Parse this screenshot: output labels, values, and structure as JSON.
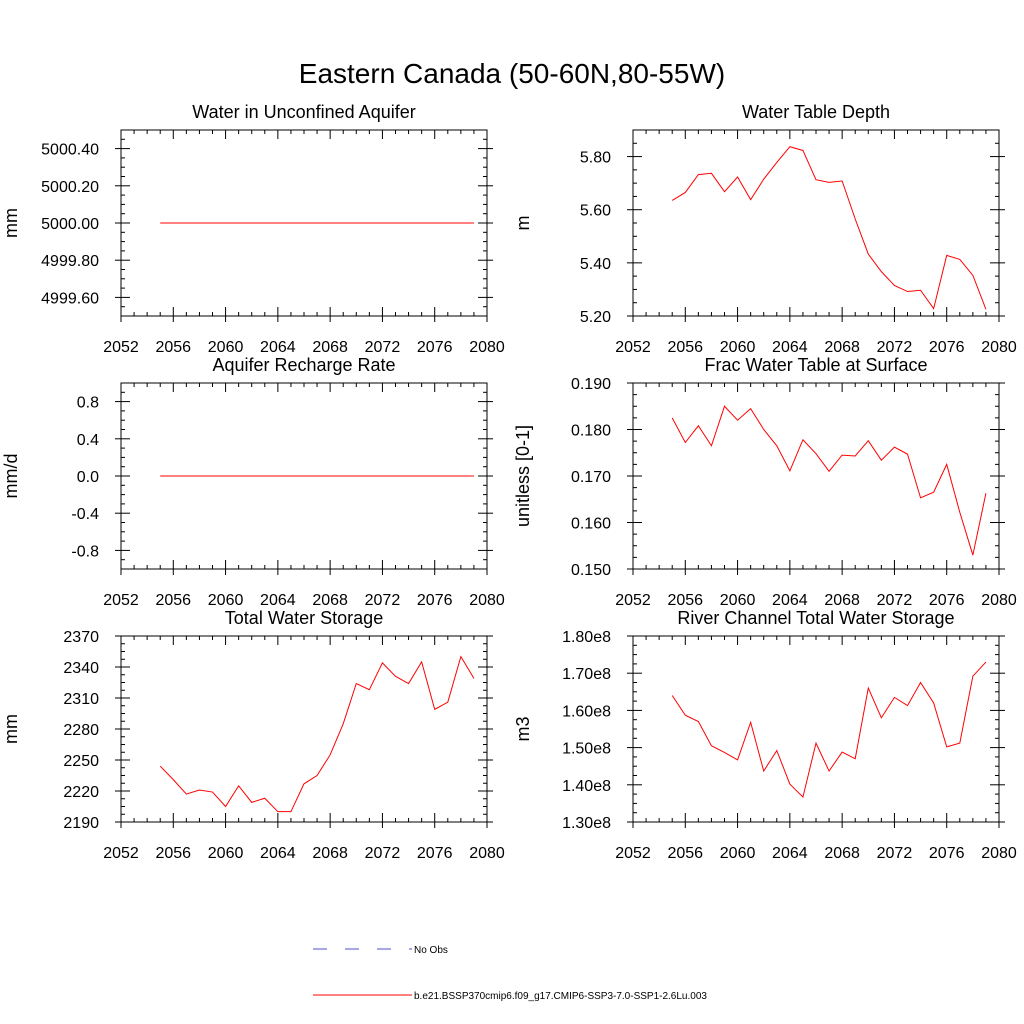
{
  "figure_title": "Eastern Canada (50-60N,80-55W)",
  "legend": [
    {
      "label": "No Obs",
      "color": "#4b4bd0",
      "dash": true
    },
    {
      "label": "b.e21.BSSP370cmip6.f09_g17.CMIP6-SSP3-7.0-SSP1-2.6Lu.003",
      "color": "#ff0000",
      "dash": false
    }
  ],
  "chart_data": [
    {
      "type": "line",
      "title": "Water in Unconfined Aquifer",
      "ylabel": "mm",
      "xlim": [
        2052,
        2080
      ],
      "ylim": [
        4999.5,
        5000.5
      ],
      "xticks": [
        2052,
        2056,
        2060,
        2064,
        2068,
        2072,
        2076,
        2080
      ],
      "xtick_labels": [
        "2052",
        "2056",
        "2060",
        "2064",
        "2068",
        "2072",
        "2076",
        "2080"
      ],
      "yticks": [
        4999.6,
        4999.8,
        5000.0,
        5000.2,
        5000.4
      ],
      "ytick_labels": [
        "4999.60",
        "4999.80",
        "5000.00",
        "5000.20",
        "5000.40"
      ],
      "series": [
        {
          "color": "#ff0000",
          "x": [
            2055,
            2056,
            2057,
            2058,
            2059,
            2060,
            2061,
            2062,
            2063,
            2064,
            2065,
            2066,
            2067,
            2068,
            2069,
            2070,
            2071,
            2072,
            2073,
            2074,
            2075,
            2076,
            2077,
            2078,
            2079
          ],
          "y": [
            5000,
            5000,
            5000,
            5000,
            5000,
            5000,
            5000,
            5000,
            5000,
            5000,
            5000,
            5000,
            5000,
            5000,
            5000,
            5000,
            5000,
            5000,
            5000,
            5000,
            5000,
            5000,
            5000,
            5000,
            5000
          ]
        }
      ]
    },
    {
      "type": "line",
      "title": "Water Table Depth",
      "ylabel": "m",
      "xlim": [
        2052,
        2080
      ],
      "ylim": [
        5.2,
        5.9
      ],
      "xticks": [
        2052,
        2056,
        2060,
        2064,
        2068,
        2072,
        2076,
        2080
      ],
      "xtick_labels": [
        "2052",
        "2056",
        "2060",
        "2064",
        "2068",
        "2072",
        "2076",
        "2080"
      ],
      "yticks": [
        5.2,
        5.4,
        5.6,
        5.8
      ],
      "ytick_labels": [
        "5.20",
        "5.40",
        "5.60",
        "5.80"
      ],
      "series": [
        {
          "color": "#ff0000",
          "x": [
            2055,
            2056,
            2057,
            2058,
            2059,
            2060,
            2061,
            2062,
            2063,
            2064,
            2065,
            2066,
            2067,
            2068,
            2069,
            2070,
            2071,
            2072,
            2073,
            2074,
            2075,
            2076,
            2077,
            2078,
            2079
          ],
          "y": [
            5.635,
            5.665,
            5.732,
            5.737,
            5.668,
            5.723,
            5.638,
            5.715,
            5.778,
            5.837,
            5.823,
            5.713,
            5.703,
            5.708,
            5.565,
            5.433,
            5.367,
            5.315,
            5.292,
            5.297,
            5.228,
            5.428,
            5.413,
            5.353,
            5.225
          ]
        }
      ]
    },
    {
      "type": "line",
      "title": "Aquifer Recharge Rate",
      "ylabel": "mm/d",
      "xlim": [
        2052,
        2080
      ],
      "ylim": [
        -1.0,
        1.0
      ],
      "xticks": [
        2052,
        2056,
        2060,
        2064,
        2068,
        2072,
        2076,
        2080
      ],
      "xtick_labels": [
        "2052",
        "2056",
        "2060",
        "2064",
        "2068",
        "2072",
        "2076",
        "2080"
      ],
      "yticks": [
        -0.8,
        -0.4,
        0.0,
        0.4,
        0.8
      ],
      "ytick_labels": [
        "-0.8",
        "-0.4",
        "0.0",
        "0.4",
        "0.8"
      ],
      "series": [
        {
          "color": "#ff0000",
          "x": [
            2055,
            2056,
            2057,
            2058,
            2059,
            2060,
            2061,
            2062,
            2063,
            2064,
            2065,
            2066,
            2067,
            2068,
            2069,
            2070,
            2071,
            2072,
            2073,
            2074,
            2075,
            2076,
            2077,
            2078,
            2079
          ],
          "y": [
            0,
            0,
            0,
            0,
            0,
            0,
            0,
            0,
            0,
            0,
            0,
            0,
            0,
            0,
            0,
            0,
            0,
            0,
            0,
            0,
            0,
            0,
            0,
            0,
            0
          ]
        }
      ]
    },
    {
      "type": "line",
      "title": "Frac Water Table at Surface",
      "ylabel": "unitless [0-1]",
      "xlim": [
        2052,
        2080
      ],
      "ylim": [
        0.15,
        0.19
      ],
      "xticks": [
        2052,
        2056,
        2060,
        2064,
        2068,
        2072,
        2076,
        2080
      ],
      "xtick_labels": [
        "2052",
        "2056",
        "2060",
        "2064",
        "2068",
        "2072",
        "2076",
        "2080"
      ],
      "yticks": [
        0.15,
        0.16,
        0.17,
        0.18,
        0.19
      ],
      "ytick_labels": [
        "0.150",
        "0.160",
        "0.170",
        "0.180",
        "0.190"
      ],
      "series": [
        {
          "color": "#ff0000",
          "x": [
            2055,
            2056,
            2057,
            2058,
            2059,
            2060,
            2061,
            2062,
            2063,
            2064,
            2065,
            2066,
            2067,
            2068,
            2069,
            2070,
            2071,
            2072,
            2073,
            2074,
            2075,
            2076,
            2077,
            2078,
            2079
          ],
          "y": [
            0.1825,
            0.1772,
            0.1808,
            0.1765,
            0.185,
            0.182,
            0.1845,
            0.18,
            0.1765,
            0.1711,
            0.1778,
            0.1748,
            0.171,
            0.1745,
            0.1743,
            0.1776,
            0.1734,
            0.1762,
            0.1747,
            0.1653,
            0.1665,
            0.1725,
            0.1622,
            0.153,
            0.1663
          ]
        }
      ]
    },
    {
      "type": "line",
      "title": "Total Water Storage",
      "ylabel": "mm",
      "xlim": [
        2052,
        2080
      ],
      "ylim": [
        2190,
        2370
      ],
      "xticks": [
        2052,
        2056,
        2060,
        2064,
        2068,
        2072,
        2076,
        2080
      ],
      "xtick_labels": [
        "2052",
        "2056",
        "2060",
        "2064",
        "2068",
        "2072",
        "2076",
        "2080"
      ],
      "yticks": [
        2190,
        2220,
        2250,
        2280,
        2310,
        2340,
        2370
      ],
      "ytick_labels": [
        "2190",
        "2220",
        "2250",
        "2280",
        "2310",
        "2340",
        "2370"
      ],
      "series": [
        {
          "color": "#ff0000",
          "x": [
            2055,
            2056,
            2057,
            2058,
            2059,
            2060,
            2061,
            2062,
            2063,
            2064,
            2065,
            2066,
            2067,
            2068,
            2069,
            2070,
            2071,
            2072,
            2073,
            2074,
            2075,
            2076,
            2077,
            2078,
            2079
          ],
          "y": [
            2244,
            2231,
            2217,
            2221,
            2219,
            2205,
            2225,
            2209,
            2213,
            2200,
            2200,
            2227,
            2235,
            2255,
            2285,
            2324,
            2318,
            2344,
            2331,
            2324,
            2345,
            2299,
            2306,
            2350,
            2329
          ]
        }
      ]
    },
    {
      "type": "line",
      "title": "River Channel Total Water Storage",
      "ylabel": "m3",
      "xlim": [
        2052,
        2080
      ],
      "ylim": [
        130000000.0,
        180000000.0
      ],
      "xticks": [
        2052,
        2056,
        2060,
        2064,
        2068,
        2072,
        2076,
        2080
      ],
      "xtick_labels": [
        "2052",
        "2056",
        "2060",
        "2064",
        "2068",
        "2072",
        "2076",
        "2080"
      ],
      "yticks": [
        130000000.0,
        140000000.0,
        150000000.0,
        160000000.0,
        170000000.0,
        180000000.0
      ],
      "ytick_labels": [
        "1.30e8",
        "1.40e8",
        "1.50e8",
        "1.60e8",
        "1.70e8",
        "1.80e8"
      ],
      "series": [
        {
          "color": "#ff0000",
          "x": [
            2055,
            2056,
            2057,
            2058,
            2059,
            2060,
            2061,
            2062,
            2063,
            2064,
            2065,
            2066,
            2067,
            2068,
            2069,
            2070,
            2071,
            2072,
            2073,
            2074,
            2075,
            2076,
            2077,
            2078,
            2079
          ],
          "y": [
            164000000.0,
            158700000.0,
            157000000.0,
            150500000.0,
            148700000.0,
            146700000.0,
            156800000.0,
            143700000.0,
            149200000.0,
            140200000.0,
            136700000.0,
            151200000.0,
            143700000.0,
            148800000.0,
            147000000.0,
            166000000.0,
            158000000.0,
            163500000.0,
            161300000.0,
            167500000.0,
            162000000.0,
            150200000.0,
            151200000.0,
            169200000.0,
            173000000.0
          ]
        }
      ]
    }
  ]
}
